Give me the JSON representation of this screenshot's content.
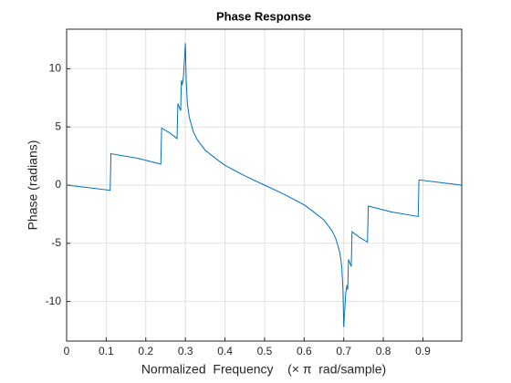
{
  "chart_data": {
    "type": "line",
    "title": "Phase Response",
    "xlabel": "Normalized  Frequency    (× π  rad/sample)",
    "ylabel": "Phase (radians)",
    "xlim": [
      0,
      0.998
    ],
    "ylim": [
      -13.4,
      13.4
    ],
    "xticks": [
      0,
      0.1,
      0.2,
      0.3,
      0.4,
      0.5,
      0.6,
      0.7,
      0.8,
      0.9
    ],
    "yticks": [
      -10,
      -5,
      0,
      5,
      10
    ],
    "grid": true,
    "series": [
      {
        "color": "#0072bd",
        "x": [
          0,
          0.05,
          0.11,
          0.112,
          0.18,
          0.238,
          0.24,
          0.26,
          0.279,
          0.281,
          0.288,
          0.29,
          0.292,
          0.295,
          0.298,
          0.3,
          0.302,
          0.305,
          0.31,
          0.32,
          0.33,
          0.35,
          0.38,
          0.4,
          0.45,
          0.5,
          0.55,
          0.6,
          0.62,
          0.65,
          0.67,
          0.68,
          0.69,
          0.695,
          0.698,
          0.7,
          0.702,
          0.705,
          0.708,
          0.71,
          0.712,
          0.719,
          0.721,
          0.74,
          0.76,
          0.762,
          0.82,
          0.888,
          0.89,
          0.95,
          0.998
        ],
        "values": [
          0,
          -0.2,
          -0.45,
          2.7,
          2.3,
          1.8,
          4.9,
          4.5,
          4.0,
          7.0,
          6.4,
          9.0,
          8.6,
          9.3,
          11.0,
          12.2,
          9.0,
          7.0,
          5.8,
          4.6,
          3.9,
          3.0,
          2.2,
          1.7,
          0.8,
          0.0,
          -0.8,
          -1.7,
          -2.2,
          -3.0,
          -3.9,
          -4.6,
          -5.8,
          -7.0,
          -9.0,
          -12.2,
          -11.0,
          -9.3,
          -8.6,
          -9.0,
          -6.4,
          -7.0,
          -4.0,
          -4.5,
          -4.9,
          -1.8,
          -2.3,
          -2.7,
          0.45,
          0.2,
          0
        ]
      }
    ]
  }
}
